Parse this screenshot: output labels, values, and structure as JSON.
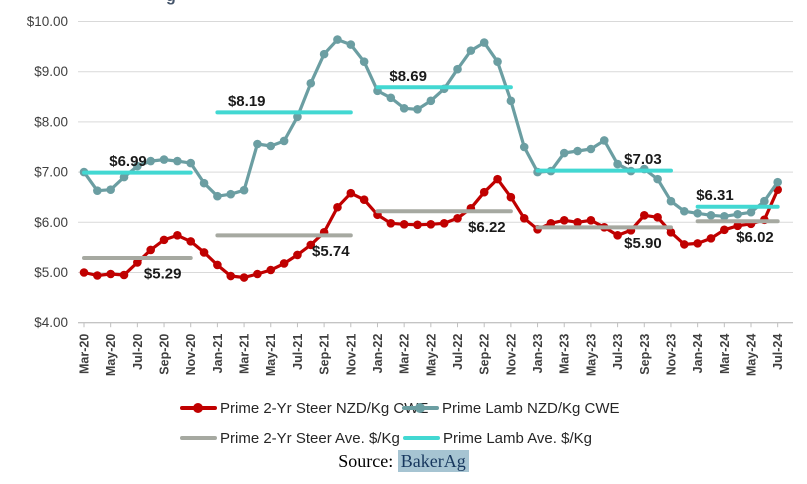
{
  "title_fragment": "g",
  "y_axis": {
    "labels": [
      "$10.00",
      "$9.00",
      "$8.00",
      "$7.00",
      "$6.00",
      "$5.00",
      "$4.00"
    ],
    "values": [
      10,
      9,
      8,
      7,
      6,
      5,
      4
    ]
  },
  "x_axis": {
    "tick_labels": [
      "Mar-20",
      "May-20",
      "Jul-20",
      "Sep-20",
      "Nov-20",
      "Jan-21",
      "Mar-21",
      "May-21",
      "Jul-21",
      "Sep-21",
      "Nov-21",
      "Jan-22",
      "Mar-22",
      "May-22",
      "Jul-22",
      "Sep-22",
      "Nov-22",
      "Jan-23",
      "Mar-23",
      "May-23",
      "Jul-23",
      "Sep-23",
      "Nov-23",
      "Jan-24",
      "Mar-24",
      "May-24",
      "Jul-24"
    ]
  },
  "chart_data": {
    "type": "line",
    "ylim": [
      4,
      10
    ],
    "grid": true,
    "legend_position": "bottom",
    "x": [
      "Mar-20",
      "Apr-20",
      "May-20",
      "Jun-20",
      "Jul-20",
      "Aug-20",
      "Sep-20",
      "Oct-20",
      "Nov-20",
      "Dec-20",
      "Jan-21",
      "Feb-21",
      "Mar-21",
      "Apr-21",
      "May-21",
      "Jun-21",
      "Jul-21",
      "Aug-21",
      "Sep-21",
      "Oct-21",
      "Nov-21",
      "Dec-21",
      "Jan-22",
      "Feb-22",
      "Mar-22",
      "Apr-22",
      "May-22",
      "Jun-22",
      "Jul-22",
      "Aug-22",
      "Sep-22",
      "Oct-22",
      "Nov-22",
      "Dec-22",
      "Jan-23",
      "Feb-23",
      "Mar-23",
      "Apr-23",
      "May-23",
      "Jun-23",
      "Jul-23",
      "Aug-23",
      "Sep-23",
      "Oct-23",
      "Nov-23",
      "Dec-23",
      "Jan-24",
      "Feb-24",
      "Mar-24",
      "Apr-24",
      "May-24",
      "Jun-24",
      "Jul-24"
    ],
    "series": [
      {
        "name": "Prime 2-Yr Steer NZD/Kg CWE",
        "kind": "line-markers",
        "color": "#C00000",
        "values": [
          5.0,
          4.94,
          4.97,
          4.95,
          5.2,
          5.45,
          5.65,
          5.74,
          5.62,
          5.4,
          5.15,
          4.93,
          4.9,
          4.97,
          5.05,
          5.18,
          5.35,
          5.55,
          5.8,
          6.3,
          6.58,
          6.45,
          6.15,
          5.98,
          5.96,
          5.95,
          5.96,
          5.98,
          6.08,
          6.28,
          6.6,
          6.86,
          6.5,
          6.08,
          5.86,
          5.98,
          6.04,
          6.0,
          6.04,
          5.9,
          5.74,
          5.84,
          6.14,
          6.1,
          5.8,
          5.56,
          5.58,
          5.68,
          5.85,
          5.93,
          5.97,
          6.05,
          6.65
        ]
      },
      {
        "name": "Prime Lamb NZD/Kg CWE",
        "kind": "line-markers",
        "color": "#6B9EA2",
        "values": [
          7.0,
          6.63,
          6.65,
          6.9,
          7.12,
          7.22,
          7.25,
          7.22,
          7.18,
          6.78,
          6.52,
          6.56,
          6.64,
          7.56,
          7.52,
          7.62,
          8.1,
          8.77,
          9.35,
          9.64,
          9.54,
          9.2,
          8.62,
          8.48,
          8.27,
          8.25,
          8.42,
          8.66,
          9.05,
          9.42,
          9.58,
          9.2,
          8.42,
          7.5,
          7.0,
          7.02,
          7.38,
          7.42,
          7.46,
          7.63,
          7.16,
          7.02,
          7.06,
          6.86,
          6.42,
          6.22,
          6.18,
          6.14,
          6.12,
          6.16,
          6.2,
          6.42,
          6.8
        ]
      },
      {
        "name": "Prime 2-Yr Steer Ave. $/Kg",
        "kind": "avg-segments",
        "color": "#A6A9A1",
        "segments": [
          {
            "start": 0,
            "end": 8,
            "value": 5.29,
            "label": "$5.29",
            "label_at": 5.9,
            "side": "below"
          },
          {
            "start": 10,
            "end": 20,
            "value": 5.74,
            "label": "$5.74",
            "label_at": 18.5,
            "side": "below"
          },
          {
            "start": 22,
            "end": 32,
            "value": 6.22,
            "label": "$6.22",
            "label_at": 30.2,
            "side": "below"
          },
          {
            "start": 34,
            "end": 44,
            "value": 5.9,
            "label": "$5.90",
            "label_at": 41.9,
            "side": "below"
          },
          {
            "start": 46,
            "end": 52,
            "value": 6.02,
            "label": "$6.02",
            "label_at": 50.3,
            "side": "below"
          }
        ]
      },
      {
        "name": "Prime Lamb Ave. $/Kg",
        "kind": "avg-segments",
        "color": "#42D8D2",
        "segments": [
          {
            "start": 0,
            "end": 8,
            "value": 6.99,
            "label": "$6.99",
            "label_at": 3.3,
            "side": "above"
          },
          {
            "start": 10,
            "end": 20,
            "value": 8.19,
            "label": "$8.19",
            "label_at": 12.2,
            "side": "above"
          },
          {
            "start": 22,
            "end": 32,
            "value": 8.69,
            "label": "$8.69",
            "label_at": 24.3,
            "side": "above"
          },
          {
            "start": 34,
            "end": 44,
            "value": 7.03,
            "label": "$7.03",
            "label_at": 41.9,
            "side": "above"
          },
          {
            "start": 46,
            "end": 52,
            "value": 6.31,
            "label": "$6.31",
            "label_at": 47.3,
            "side": "above"
          }
        ]
      }
    ]
  },
  "legend": {
    "items": [
      {
        "label": "Prime 2-Yr Steer NZD/Kg CWE",
        "color": "#C00000",
        "marker": "line-dot"
      },
      {
        "label": "Prime Lamb NZD/Kg CWE",
        "color": "#6B9EA2",
        "marker": "line-dot"
      },
      {
        "label": "Prime 2-Yr Steer Ave. $/Kg",
        "color": "#A6A9A1",
        "marker": "line"
      },
      {
        "label": "Prime Lamb Ave. $/Kg",
        "color": "#42D8D2",
        "marker": "line"
      }
    ]
  },
  "source": {
    "prefix": "Source: ",
    "text": "BakerAg",
    "highlight_color": "#A6C4D2",
    "text_color": "#17375E"
  },
  "colors": {
    "gridline": "#D9D9D9",
    "axis_line": "#BFBFBF",
    "axis_text": "#3F3F3F",
    "data_label": "#1A1A1A"
  }
}
